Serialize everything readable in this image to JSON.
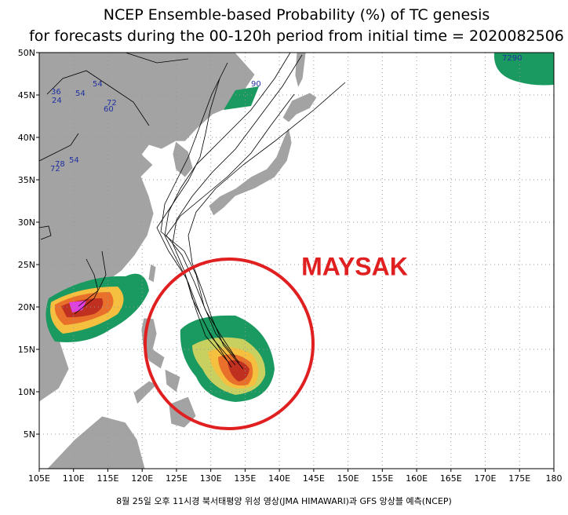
{
  "title": [
    "NCEP Ensemble-based Probability (%) of TC genesis",
    "for forecasts during the 00-120h period from initial time = 2020082506"
  ],
  "map": {
    "lon_labels": [
      "105E",
      "110E",
      "115E",
      "120E",
      "125E",
      "130E",
      "135E",
      "140E",
      "145E",
      "150E",
      "155E",
      "160E",
      "165E",
      "170E",
      "175E",
      "180"
    ],
    "lat_labels": [
      "5N",
      "10N",
      "15N",
      "20N",
      "25N",
      "30N",
      "35N",
      "40N",
      "45N",
      "50N"
    ],
    "annotation": "MAYSAK",
    "labels": [
      "90",
      "7290",
      "54",
      "72",
      "60",
      "36",
      "24",
      "54",
      "78",
      "72",
      "54"
    ]
  },
  "caption": "8월 25일 오후 11시경 북서태평양 위성 영상(JMA HIMAWARI)과 GFS 앙상블 예측(NCEP)"
}
